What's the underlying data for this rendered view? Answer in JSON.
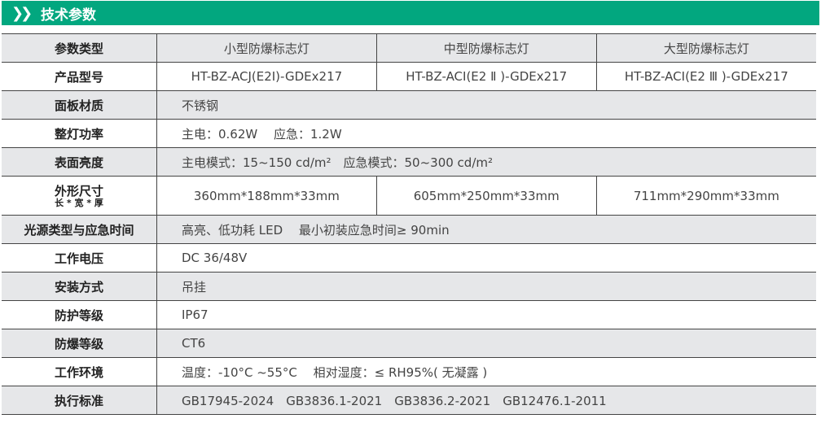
{
  "header": {
    "icon": "double-chevron-right-icon",
    "icon_glyph": "❯❯",
    "title": "技术参数"
  },
  "colors": {
    "accent": "#02a77f",
    "row_gray": "#e6e7e9"
  },
  "table": {
    "type_row": {
      "label": "参数类型",
      "values": [
        "小型防爆标志灯",
        "中型防爆标志灯",
        "大型防爆标志灯"
      ]
    },
    "model_row": {
      "label": "产品型号",
      "values": [
        "HT-BZ-ACJ(E2I)-GDEx217",
        "HT-BZ-ACI(E2 Ⅱ )-GDEx217",
        "HT-BZ-ACI(E2 Ⅲ )-GDEx217"
      ]
    },
    "panel_row": {
      "label": "面板材质",
      "value": "不锈钢"
    },
    "power_row": {
      "label": "整灯功率",
      "value": "主电：0.62W　 应急：1.2W"
    },
    "brightness_row": {
      "label": "表面亮度",
      "value": "主电模式：15~150 cd/m²　应急模式：50~300 cd/m²"
    },
    "size_row": {
      "label": "外形尺寸",
      "sublabel": "长 * 宽 * 厚",
      "values": [
        "360mm*188mm*33mm",
        "605mm*250mm*33mm",
        "711mm*290mm*33mm"
      ]
    },
    "rows": [
      {
        "label": "光源类型与应急时间",
        "value": "高亮、低功耗 LED　 最小初装应急时间≥ 90min"
      },
      {
        "label": "工作电压",
        "value": "DC 36/48V"
      },
      {
        "label": "安装方式",
        "value": "吊挂"
      },
      {
        "label": "防护等级",
        "value": "IP67"
      },
      {
        "label": "防爆等级",
        "value": "CT6"
      },
      {
        "label": "工作环境",
        "value": "温度：-10°C ~55°C　 相对湿度：≤ RH95%( 无凝露 )"
      },
      {
        "label": "执行标准",
        "value": "GB17945-2024　GB3836.1-2021　GB3836.2-2021　GB12476.1-2011"
      }
    ]
  }
}
